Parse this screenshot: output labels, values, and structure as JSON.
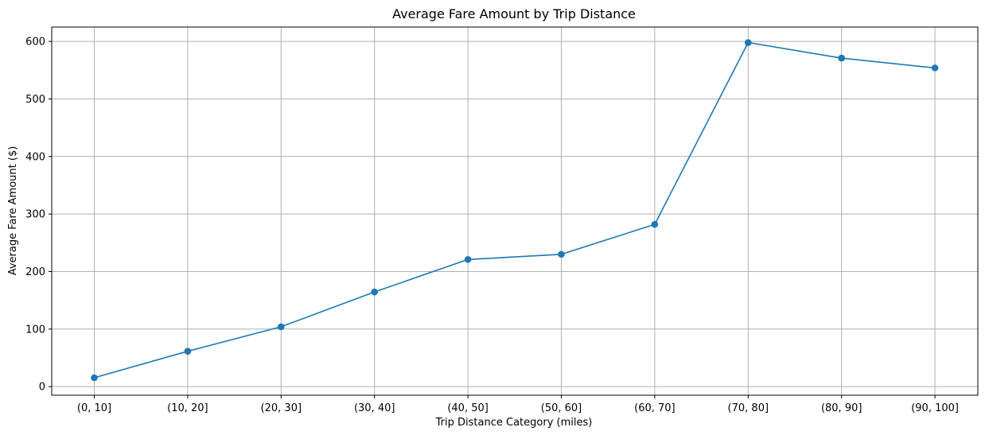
{
  "chart_data": {
    "type": "line",
    "title": "Average Fare Amount by Trip Distance",
    "xlabel": "Trip Distance Category (miles)",
    "ylabel": "Average Fare Amount ($)",
    "categories": [
      "(0, 10]",
      "(10, 20]",
      "(20, 30]",
      "(30, 40]",
      "(40, 50]",
      "(50, 60]",
      "(60, 70]",
      "(70, 80]",
      "(80, 90]",
      "(90, 100]"
    ],
    "values": [
      15.4,
      61.5,
      104.0,
      164.5,
      221.0,
      230.0,
      282.0,
      598.0,
      571.0,
      554.0
    ],
    "ylim": [
      -15,
      625
    ],
    "yticks": [
      0,
      100,
      200,
      300,
      400,
      500,
      600
    ],
    "grid": true,
    "line_color": "#1f77b4",
    "grid_color": "#b0b0b0",
    "marker": "circle"
  }
}
